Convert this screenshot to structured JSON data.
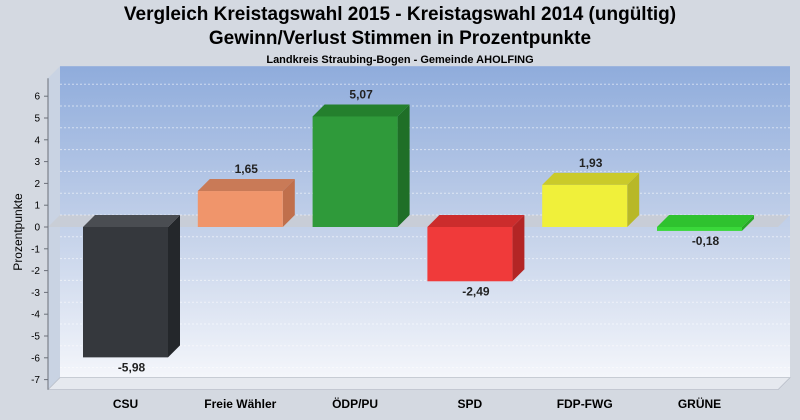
{
  "header": {
    "title": "Vergleich Kreistagswahl 2015 - Kreistagswahl 2014 (ungültig)",
    "subtitle": "Gewinn/Verlust Stimmen in Prozentpunkte",
    "caption": "Landkreis Straubing-Bogen - Gemeinde AHOLFING"
  },
  "chart_data": {
    "type": "bar",
    "title": "Vergleich Kreistagswahl 2015 - Kreistagswahl 2014 (ungültig)",
    "subtitle": "Gewinn/Verlust Stimmen in Prozentpunkte",
    "xlabel": "",
    "ylabel": "Prozentpunkte",
    "ylim": [
      -7,
      6
    ],
    "yticks": [
      6,
      5,
      4,
      3,
      2,
      1,
      0,
      -1,
      -2,
      -3,
      -4,
      -5,
      -6,
      -7
    ],
    "categories": [
      "CSU",
      "Freie Wähler",
      "ÖDP/PU",
      "SPD",
      "FDP-FWG",
      "GRÜNE"
    ],
    "values": [
      -5.98,
      1.65,
      5.07,
      -2.49,
      1.93,
      -0.18
    ],
    "value_labels": [
      "-5,98",
      "1,65",
      "5,07",
      "-2,49",
      "1,93",
      "-0,18"
    ],
    "colors": [
      "#35383d",
      "#f0956b",
      "#2f9a3a",
      "#f03a3a",
      "#f0f03a",
      "#3ad83a"
    ],
    "side_colors": [
      "#24272b",
      "#c06f4c",
      "#1f6f27",
      "#b32525",
      "#b8b827",
      "#28a828"
    ],
    "top_colors": [
      "#4a4d52",
      "#c97a57",
      "#24802d",
      "#cc2c2c",
      "#caca2a",
      "#2fc22f"
    ],
    "grid": true
  }
}
